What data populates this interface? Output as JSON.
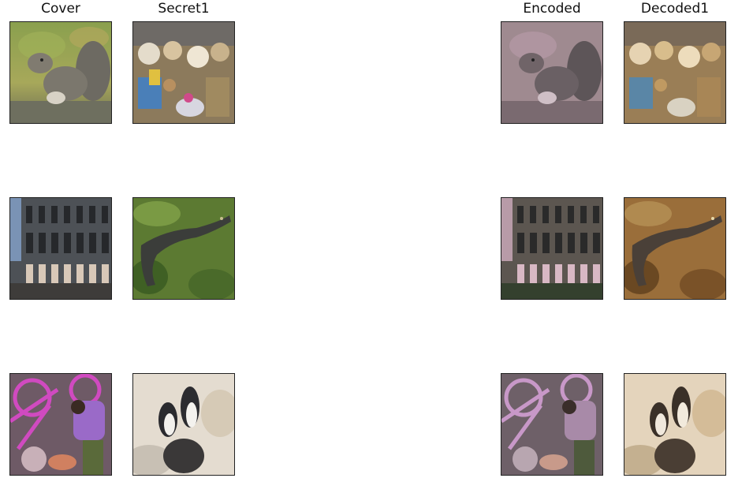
{
  "columns": {
    "cover": "Cover",
    "secret": "Secret1",
    "encoded": "Encoded",
    "decoded": "Decoded1"
  },
  "rows": [
    {
      "cover": "squirrel",
      "secret": "market stall"
    },
    {
      "cover": "colosseum",
      "secret": "alligator"
    },
    {
      "cover": "person with bicycles",
      "secret": "penguins"
    }
  ]
}
